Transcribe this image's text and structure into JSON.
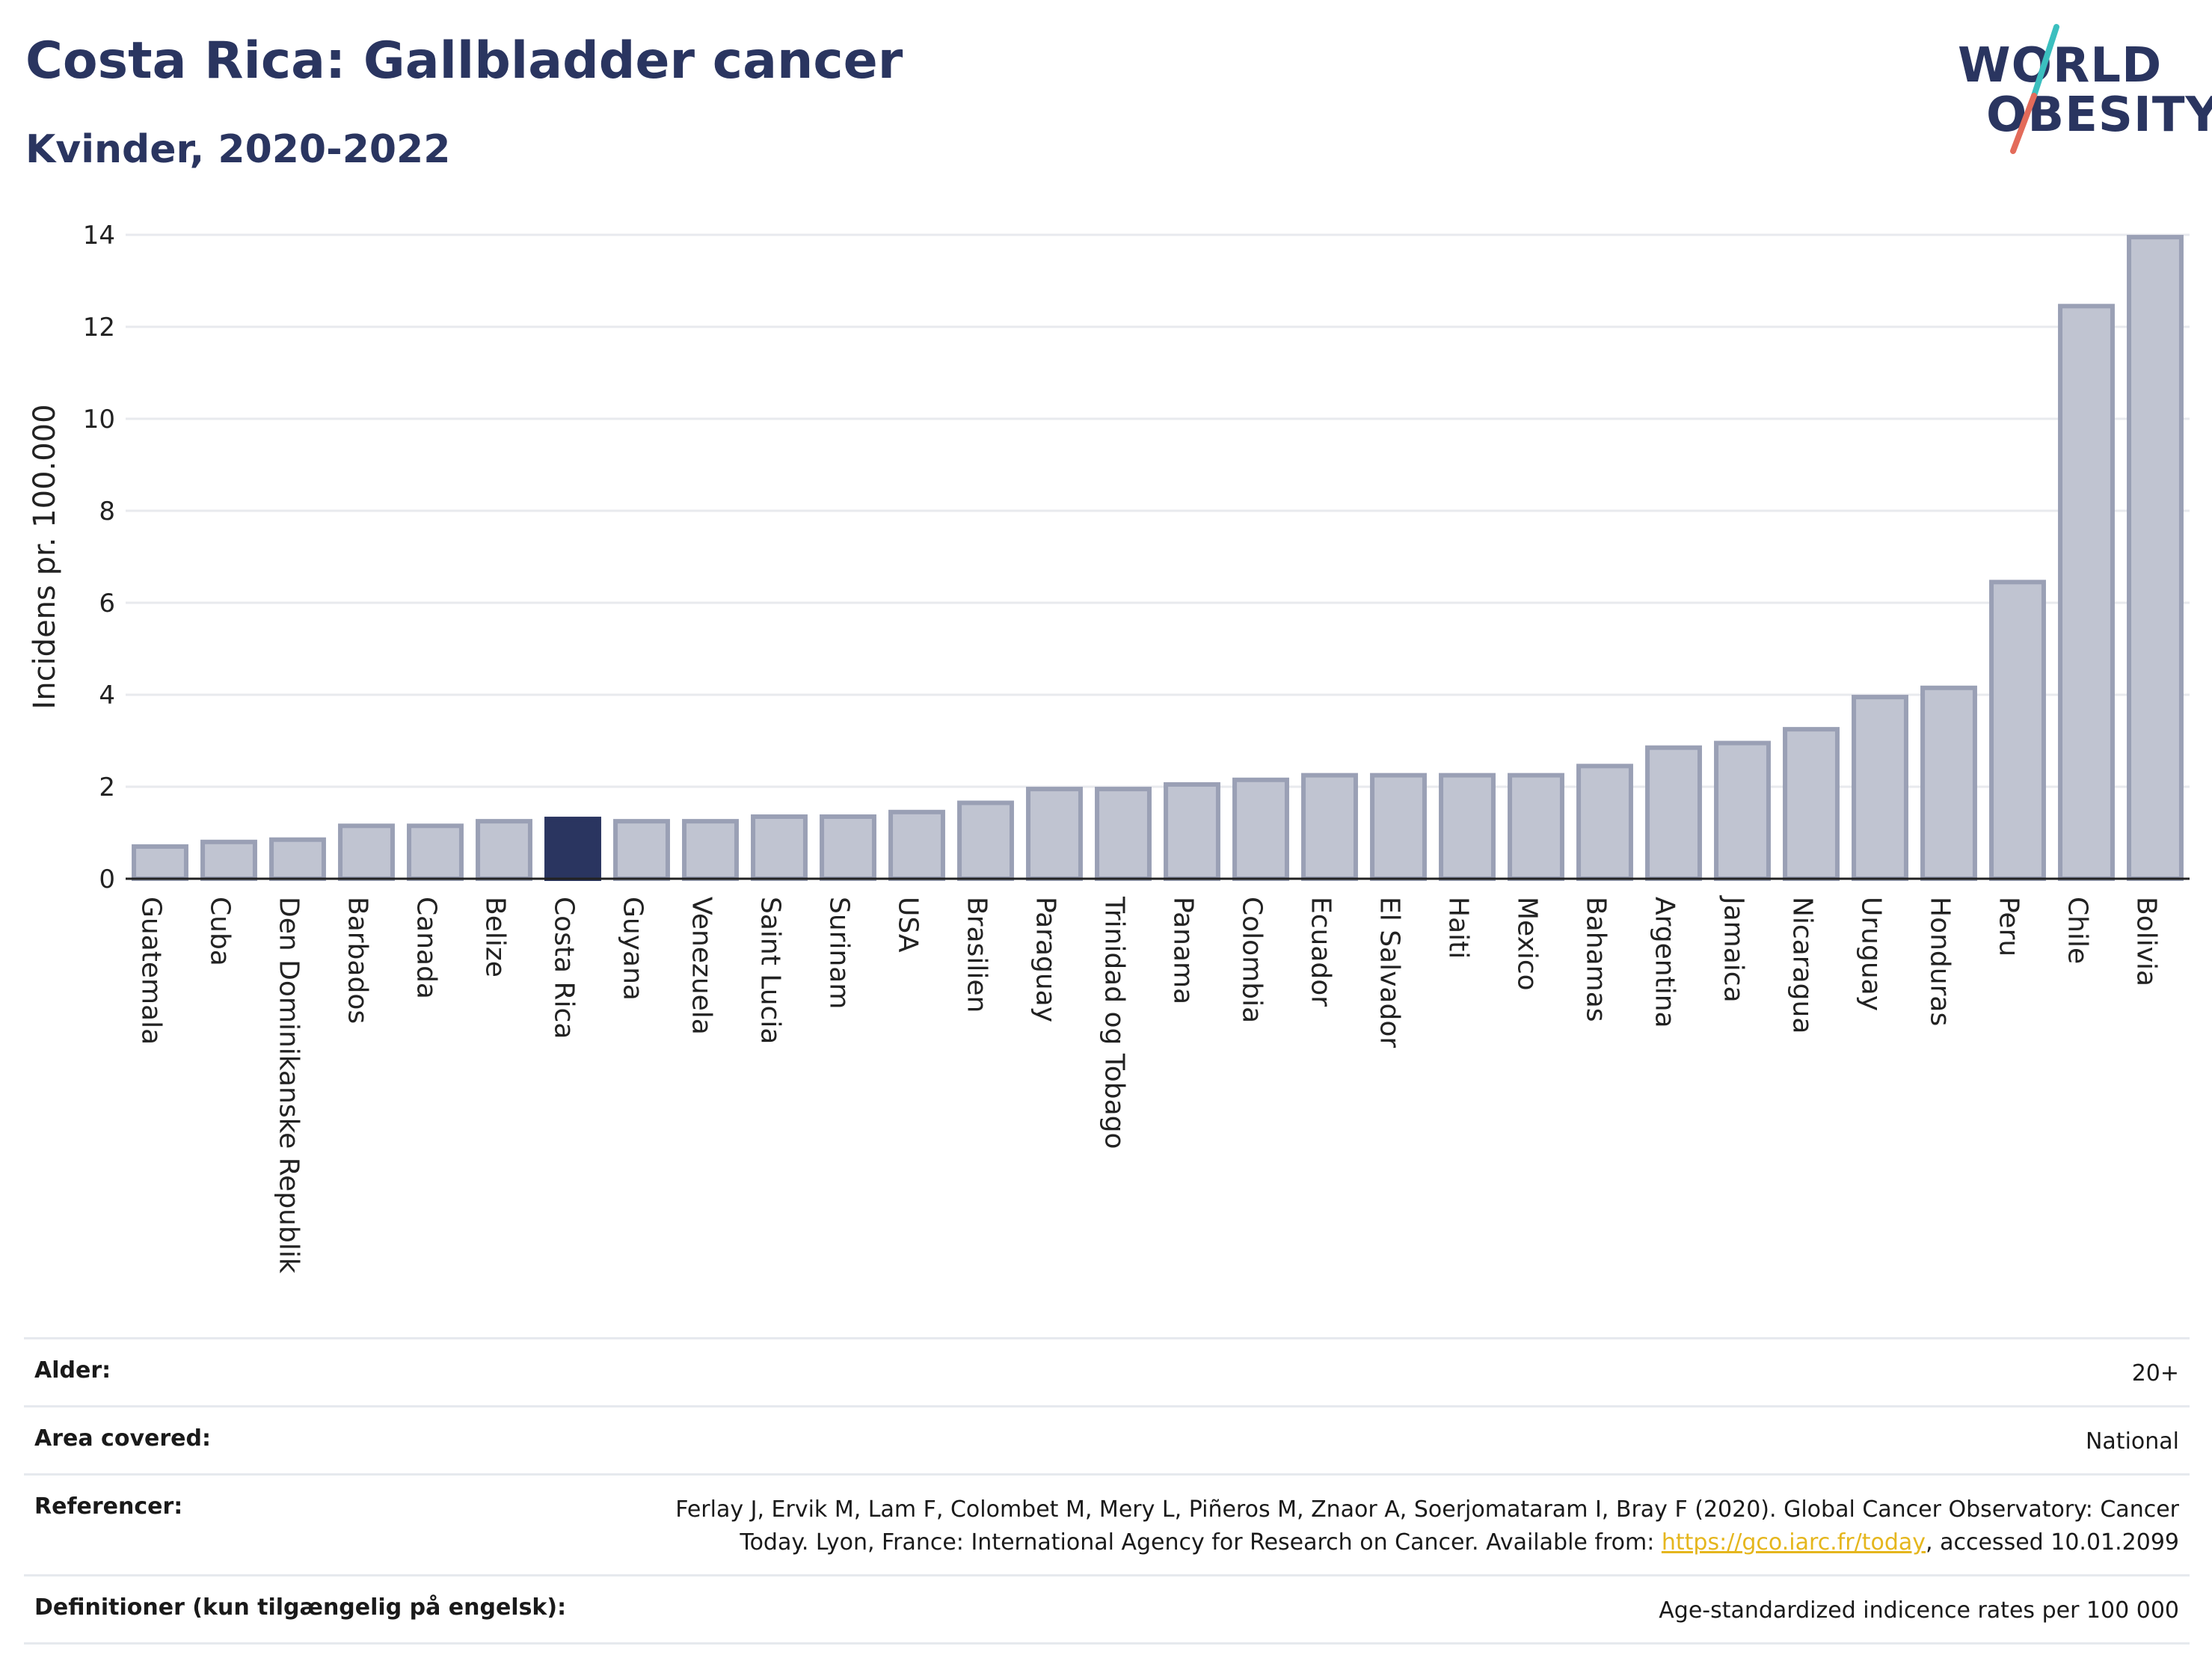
{
  "header": {
    "title": "Costa Rica: Gallbladder cancer",
    "subtitle": "Kvinder, 2020-2022"
  },
  "logo": {
    "line1": "WORLD",
    "line2": "OBESITY",
    "accent_teal": "#3bbfbf",
    "accent_coral": "#e36b5a"
  },
  "colors": {
    "bar_fill": "#c0c4d1",
    "bar_stroke": "#9aa0b5",
    "highlight_fill": "#2a3560",
    "grid": "#e8eaee",
    "axis": "#222222"
  },
  "chart_data": {
    "type": "bar",
    "ylabel": "Incidens pr. 100.000",
    "ylim": [
      0,
      14
    ],
    "yticks": [
      0,
      2,
      4,
      6,
      8,
      10,
      12,
      14
    ],
    "highlight": "Costa Rica",
    "grid": true,
    "categories": [
      "Guatemala",
      "Cuba",
      "Den Dominikanske Republik",
      "Barbados",
      "Canada",
      "Belize",
      "Costa Rica",
      "Guyana",
      "Venezuela",
      "Saint Lucia",
      "Surinam",
      "USA",
      "Brasilien",
      "Paraguay",
      "Trinidad og Tobago",
      "Panama",
      "Colombia",
      "Ecuador",
      "El Salvador",
      "Haiti",
      "Mexico",
      "Bahamas",
      "Argentina",
      "Jamaica",
      "Nicaragua",
      "Uruguay",
      "Honduras",
      "Peru",
      "Chile",
      "Bolivia"
    ],
    "values": [
      0.7,
      0.8,
      0.85,
      1.15,
      1.15,
      1.25,
      1.3,
      1.25,
      1.25,
      1.35,
      1.35,
      1.45,
      1.65,
      1.95,
      1.95,
      2.05,
      2.15,
      2.25,
      2.25,
      2.25,
      2.25,
      2.45,
      2.85,
      2.95,
      3.25,
      3.95,
      4.15,
      6.45,
      12.45,
      13.95
    ]
  },
  "meta": {
    "rows": [
      {
        "label": "Alder:",
        "value": "20+"
      },
      {
        "label": "Area covered:",
        "value": "National"
      },
      {
        "label": "Definitioner (kun tilgængelig på engelsk):",
        "value": "Age-standardized indicence rates per 100 000"
      }
    ],
    "reference": {
      "label": "Referencer:",
      "line1": "Ferlay J, Ervik M, Lam F, Colombet M, Mery L, Piñeros M, Znaor A, Soerjomataram I, Bray F (2020). Global Cancer Observatory: Cancer",
      "line2_pre": "Today. Lyon, France: International Agency for Research on Cancer. Available from: ",
      "link": "https://gco.iarc.fr/today",
      "line2_post": ", accessed 10.01.2099"
    }
  }
}
